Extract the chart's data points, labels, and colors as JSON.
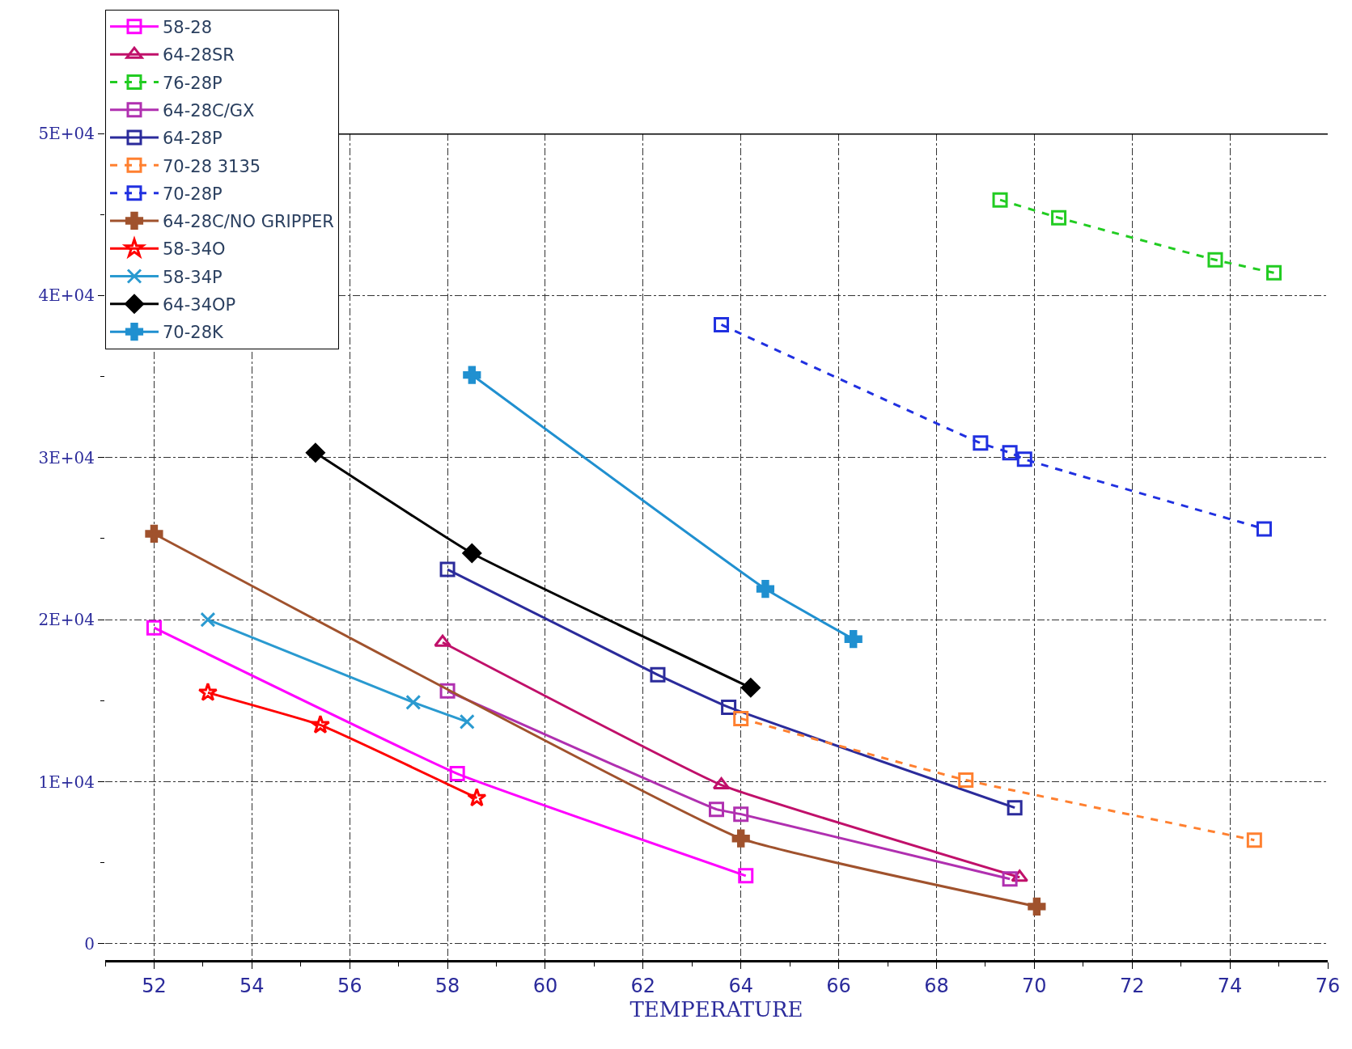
{
  "chart_data": {
    "type": "line",
    "xlabel": "TEMPERATURE",
    "xlim": [
      51,
      76
    ],
    "xticks": [
      52,
      54,
      56,
      58,
      60,
      62,
      64,
      66,
      68,
      70,
      72,
      74,
      76
    ],
    "ylim": [
      -1000,
      50000
    ],
    "yticks": [
      {
        "value": 0,
        "label": "0"
      },
      {
        "value": 10000,
        "label": "1E+04"
      },
      {
        "value": 20000,
        "label": "2E+04"
      },
      {
        "value": 30000,
        "label": "3E+04"
      },
      {
        "value": 40000,
        "label": "4E+04"
      },
      {
        "value": 50000,
        "label": "5E+04"
      }
    ],
    "grid": true,
    "legend": "top left",
    "series": [
      {
        "name": "58-28",
        "color": "#ff00ff",
        "marker": "square",
        "line_style": "solid",
        "x": [
          52,
          58.2,
          64.1
        ],
        "values": [
          19500,
          10500,
          4200
        ]
      },
      {
        "name": "64-28SR",
        "color": "#c0106a",
        "marker": "triangle",
        "line_style": "solid",
        "x": [
          57.9,
          63.6,
          69.7
        ],
        "values": [
          18600,
          9800,
          4100
        ]
      },
      {
        "name": "76-28P",
        "color": "#22cc22",
        "marker": "square",
        "line_style": "dashed",
        "x": [
          69.3,
          70.5,
          73.7,
          74.9
        ],
        "values": [
          45900,
          44800,
          42200,
          41400
        ]
      },
      {
        "name": "64-28C/GX",
        "color": "#b030b0",
        "marker": "square",
        "line_style": "solid",
        "x": [
          58.0,
          63.5,
          64.0,
          69.5
        ],
        "values": [
          15600,
          8300,
          8000,
          4000
        ]
      },
      {
        "name": "64-28P",
        "color": "#2b2b9b",
        "marker": "square",
        "line_style": "solid",
        "x": [
          58.0,
          62.3,
          63.75,
          69.6
        ],
        "values": [
          23100,
          16600,
          14600,
          8400
        ]
      },
      {
        "name": "70-28 3135",
        "color": "#ff8030",
        "marker": "square",
        "line_style": "dashed",
        "x": [
          64.0,
          68.6,
          74.5
        ],
        "values": [
          13900,
          10100,
          6400
        ]
      },
      {
        "name": "70-28P",
        "color": "#2030e0",
        "marker": "square",
        "line_style": "dashed",
        "x": [
          63.6,
          68.9,
          69.5,
          69.8,
          74.7
        ],
        "values": [
          38200,
          30900,
          30300,
          29900,
          25600
        ]
      },
      {
        "name": "64-28C/NO GRIPPER",
        "color": "#a0522d",
        "marker": "cross",
        "line_style": "solid",
        "x": [
          52,
          64.0,
          70.05
        ],
        "values": [
          25300,
          6500,
          2300
        ]
      },
      {
        "name": "58-34O",
        "color": "#ff0000",
        "marker": "star",
        "line_style": "solid",
        "x": [
          53.1,
          55.4,
          58.6
        ],
        "values": [
          15500,
          13500,
          9000
        ]
      },
      {
        "name": "58-34P",
        "color": "#2a9ad0",
        "marker": "x",
        "line_style": "solid",
        "x": [
          53.1,
          57.3,
          58.4
        ],
        "values": [
          20000,
          14900,
          13700
        ]
      },
      {
        "name": "64-34OP",
        "color": "#000000",
        "marker": "diamond",
        "line_style": "solid",
        "x": [
          55.3,
          58.5,
          64.2
        ],
        "values": [
          30300,
          24100,
          15800
        ]
      },
      {
        "name": "70-28K",
        "color": "#2090d0",
        "marker": "cross",
        "line_style": "solid",
        "x": [
          58.5,
          64.5,
          66.3
        ],
        "values": [
          35100,
          21900,
          18800
        ]
      }
    ]
  }
}
